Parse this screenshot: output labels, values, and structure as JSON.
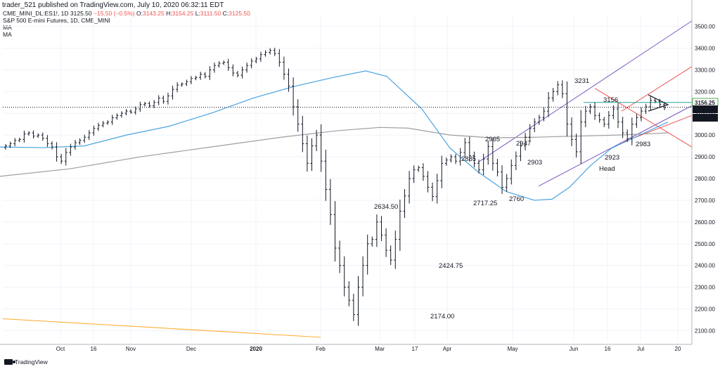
{
  "header": {
    "publisher": "trader_521 published on TradingView.com, July 10, 2020 06:32:11 EDT"
  },
  "legend": {
    "symbol": "CME_MINI_DL:ES1!, 1D",
    "last": "3125.50",
    "change": "−15.50 (−0.5%)",
    "o_label": "O:",
    "o": "3143.25",
    "h_label": "H:",
    "h": "3154.25",
    "l_label": "L:",
    "l": "3111.50",
    "c_label": "C:",
    "c": "3125.50",
    "title": "S&P 500 E-mini Futures, 1D, CME_MINI",
    "indicators": [
      "MA",
      "MA"
    ]
  },
  "footer": {
    "brand": "TradingView"
  },
  "colors": {
    "ma_fast": "#4aa3df",
    "ma_slow": "#9e9e9e",
    "channel": "#7e57c2",
    "red_lines": "#ef5350",
    "green_line": "#26a69a",
    "orange_line": "#ffa726",
    "last_price_bg": "#131722",
    "level_bg": "#4caf50"
  },
  "chart_data": {
    "type": "ohlc-bar",
    "y_axis": {
      "min": 2050,
      "max": 2550,
      "side": "right",
      "ticks": [
        "2100.00",
        "2200.00",
        "2300.00",
        "2400.00",
        "2500.00",
        "2600.00",
        "2700.00",
        "2800.00",
        "2900.00",
        "3000.00",
        "3100.00",
        "3200.00",
        "3300.00",
        "3400.00",
        "3500.00"
      ]
    },
    "x_axis": {
      "labels": [
        "Oct",
        "16",
        "Nov",
        "Dec",
        "2020",
        "Feb",
        "Mar",
        "17",
        "Apr",
        "May",
        "Jun",
        "16",
        "Jul",
        "20"
      ],
      "bold": [
        "2020"
      ]
    },
    "price_markers": [
      {
        "label": "3156.25",
        "value": 3156.25,
        "kind": "level"
      },
      {
        "label": "3125.50",
        "value": 3125.5,
        "kind": "last"
      },
      {
        "label": "10:27:49",
        "value": 3100,
        "kind": "countdown"
      }
    ],
    "annotations": [
      {
        "text": "2634.50",
        "value": 2634.5
      },
      {
        "text": "2424.75",
        "value": 2424.75
      },
      {
        "text": "2174.00",
        "value": 2174
      },
      {
        "text": "2717.25",
        "value": 2717.25
      },
      {
        "text": "2885",
        "value": 2885
      },
      {
        "text": "2965",
        "value": 2965
      },
      {
        "text": "2947",
        "value": 2947
      },
      {
        "text": "2760",
        "value": 2760
      },
      {
        "text": "2903",
        "value": 2903
      },
      {
        "text": "3231",
        "value": 3231
      },
      {
        "text": "3156",
        "value": 3156
      },
      {
        "text": "2923",
        "value": 2923
      },
      {
        "text": "Head",
        "value": 2880
      },
      {
        "text": "2983",
        "value": 2983
      }
    ],
    "series": [
      {
        "name": "ES1! 1D",
        "kind": "ohlc",
        "closes": [
          2950,
          2960,
          2975,
          2980,
          3005,
          3010,
          2995,
          3000,
          2985,
          2960,
          2945,
          2900,
          2880,
          2920,
          2945,
          2965,
          2975,
          2990,
          3010,
          3030,
          3045,
          3055,
          3060,
          3080,
          3090,
          3100,
          3110,
          3105,
          3120,
          3140,
          3145,
          3135,
          3150,
          3170,
          3155,
          3180,
          3210,
          3230,
          3235,
          3245,
          3260,
          3265,
          3280,
          3270,
          3300,
          3320,
          3330,
          3335,
          3310,
          3285,
          3275,
          3300,
          3320,
          3340,
          3350,
          3370,
          3380,
          3390,
          3375,
          3335,
          3280,
          3225,
          3130,
          3050,
          2960,
          2870,
          2950,
          3000,
          2880,
          2750,
          2634.5,
          2480,
          2400,
          2300,
          2240,
          2174,
          2300,
          2400,
          2500,
          2520,
          2600,
          2540,
          2470,
          2424.75,
          2520,
          2650,
          2720,
          2800,
          2840,
          2850,
          2810,
          2760,
          2717.25,
          2790,
          2870,
          2885,
          2900,
          2880,
          2920,
          2965,
          2905,
          2870,
          2840,
          2890,
          2947,
          2870,
          2830,
          2760,
          2800,
          2860,
          2903,
          2950,
          2990,
          3030,
          3060,
          3080,
          3110,
          3170,
          3200,
          3231,
          3190,
          3050,
          2980,
          2923,
          3060,
          3110,
          3130,
          3090,
          3070,
          3050,
          3090,
          3120,
          3060,
          3010,
          2983,
          3050,
          3080,
          3110,
          3130,
          3160,
          3155,
          3140,
          3125.5
        ]
      },
      {
        "name": "MA",
        "kind": "line",
        "points": [
          [
            0,
            2945
          ],
          [
            60,
            2942
          ],
          [
            120,
            2950
          ],
          [
            180,
            3000
          ],
          [
            240,
            3040
          ],
          [
            300,
            3100
          ],
          [
            360,
            3170
          ],
          [
            420,
            3225
          ],
          [
            470,
            3262
          ],
          [
            520,
            3295
          ],
          [
            550,
            3270
          ],
          [
            600,
            3120
          ],
          [
            640,
            2940
          ],
          [
            680,
            2830
          ],
          [
            720,
            2740
          ],
          [
            760,
            2700
          ],
          [
            785,
            2705
          ],
          [
            810,
            2760
          ],
          [
            840,
            2860
          ],
          [
            870,
            2940
          ],
          [
            910,
            3000
          ],
          [
            950,
            3060
          ]
        ]
      },
      {
        "name": "MA",
        "kind": "line",
        "points": [
          [
            0,
            2810
          ],
          [
            100,
            2845
          ],
          [
            200,
            2900
          ],
          [
            300,
            2945
          ],
          [
            400,
            2990
          ],
          [
            480,
            3020
          ],
          [
            540,
            3035
          ],
          [
            580,
            3032
          ],
          [
            640,
            3000
          ],
          [
            700,
            2987
          ],
          [
            760,
            2990
          ],
          [
            820,
            2995
          ],
          [
            880,
            3000
          ],
          [
            950,
            3010
          ]
        ]
      }
    ]
  }
}
